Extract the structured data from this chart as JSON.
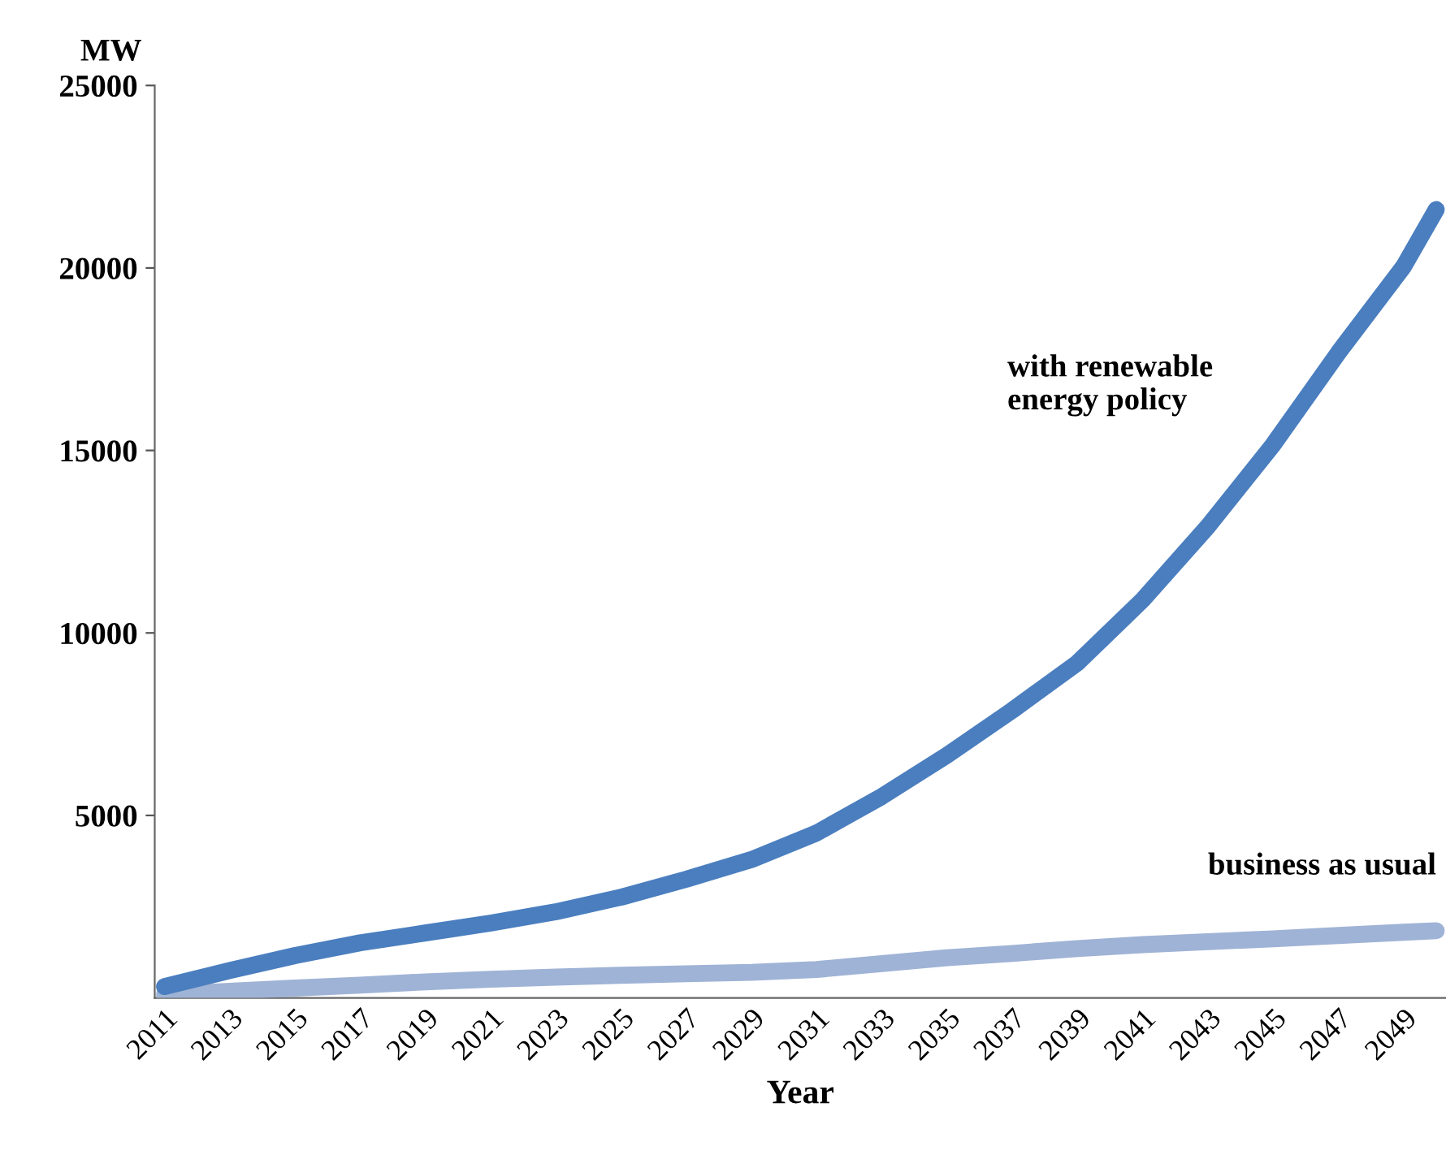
{
  "chart_data": {
    "type": "line",
    "xlabel": "Year",
    "ylabel": "MW",
    "x": [
      2011,
      2013,
      2015,
      2017,
      2019,
      2021,
      2023,
      2025,
      2027,
      2029,
      2031,
      2033,
      2035,
      2037,
      2039,
      2041,
      2043,
      2045,
      2047,
      2049,
      2050
    ],
    "series": [
      {
        "name": "with renewable\nenergy policy",
        "color": "#4a7ebf",
        "values": [
          310,
          750,
          1160,
          1510,
          1780,
          2050,
          2360,
          2760,
          3250,
          3790,
          4520,
          5520,
          6650,
          7880,
          9180,
          10910,
          12920,
          15160,
          17680,
          20040,
          21600
        ]
      },
      {
        "name": "business as usual",
        "color": "#9fb3d6",
        "values": [
          100,
          180,
          270,
          350,
          440,
          510,
          570,
          620,
          660,
          700,
          780,
          940,
          1100,
          1220,
          1350,
          1460,
          1540,
          1620,
          1710,
          1800,
          1840
        ]
      }
    ],
    "xlim": [
      2010.7,
      2050.3
    ],
    "xticks": [
      2011,
      2013,
      2015,
      2017,
      2019,
      2021,
      2023,
      2025,
      2027,
      2029,
      2031,
      2033,
      2035,
      2037,
      2039,
      2041,
      2043,
      2045,
      2047,
      2049
    ],
    "ylim": [
      0,
      25000
    ],
    "yticks": [
      5000,
      10000,
      15000,
      20000,
      25000
    ],
    "grid": false,
    "legend": false,
    "marker": "none",
    "line_style": "solid"
  }
}
